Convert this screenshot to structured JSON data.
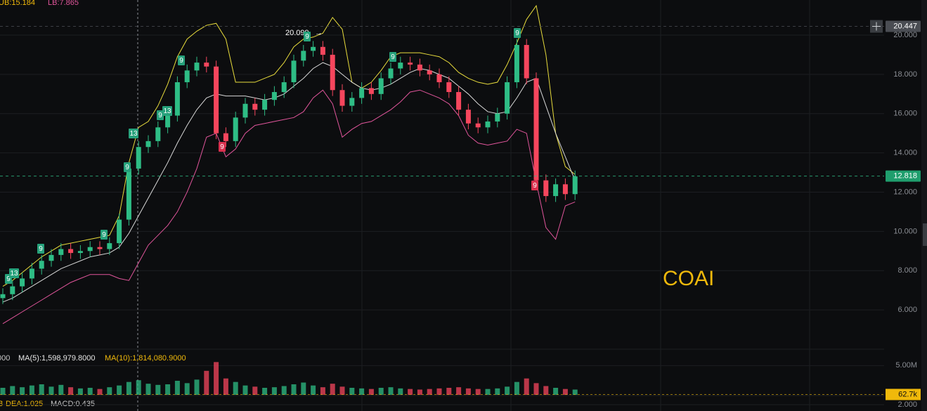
{
  "header": {
    "ub": "UB:15.184",
    "lb": "LB:7.865",
    "vol_cut": "000",
    "ma5": "MA(5):1,598,979.8000",
    "ma10": "MA(10):1,814,080.9000",
    "macd_cut": "B",
    "dea": "DEA:1.025",
    "macd": "MACD:0.435",
    "symbol": "COAI"
  },
  "chart_data": {
    "type": "candlestick",
    "up_color": "#2ebd85",
    "down_color": "#f6465d",
    "open": [
      6.6,
      6.8,
      7.2,
      7.6,
      8.1,
      8.5,
      8.8,
      9.1,
      8.9,
      9.0,
      9.2,
      9.1,
      9.4,
      10.6,
      13.2,
      14.3,
      14.6,
      15.3,
      15.9,
      17.6,
      18.2,
      18.6,
      18.4,
      15.0,
      14.6,
      15.8,
      16.5,
      16.2,
      16.7,
      17.1,
      17.6,
      18.7,
      19.2,
      19.4,
      19.0,
      17.2,
      16.4,
      16.8,
      17.3,
      17.0,
      17.8,
      18.3,
      18.6,
      18.5,
      18.2,
      18.0,
      17.6,
      17.1,
      16.2,
      15.5,
      15.3,
      15.6,
      16.0,
      17.6,
      19.5,
      17.8,
      12.6,
      11.8,
      12.4,
      11.9
    ],
    "high": [
      7.1,
      7.5,
      7.9,
      8.4,
      8.8,
      9.1,
      9.4,
      9.4,
      9.3,
      9.5,
      9.5,
      9.7,
      10.9,
      13.5,
      14.6,
      14.9,
      15.6,
      16.2,
      17.9,
      18.5,
      18.9,
      18.9,
      18.7,
      15.3,
      16.1,
      16.8,
      16.8,
      17.0,
      17.4,
      17.9,
      19.0,
      19.5,
      19.7,
      19.7,
      19.3,
      17.5,
      17.1,
      17.6,
      17.6,
      18.1,
      18.6,
      18.9,
      18.9,
      18.8,
      18.5,
      18.3,
      17.9,
      17.4,
      16.5,
      15.8,
      15.9,
      16.3,
      17.9,
      19.8,
      19.8,
      18.1,
      12.9,
      12.7,
      12.7,
      13.1
    ],
    "low": [
      6.3,
      6.5,
      6.9,
      7.3,
      7.8,
      8.2,
      8.5,
      8.6,
      8.6,
      8.7,
      8.8,
      8.8,
      9.1,
      10.3,
      12.9,
      14.0,
      14.3,
      15.0,
      15.6,
      17.3,
      17.9,
      18.1,
      14.7,
      14.3,
      14.3,
      15.5,
      15.9,
      15.9,
      16.4,
      16.8,
      17.3,
      18.4,
      18.9,
      18.7,
      16.9,
      16.1,
      16.1,
      16.5,
      16.7,
      16.7,
      17.5,
      18.0,
      18.2,
      17.9,
      17.7,
      17.3,
      16.8,
      15.9,
      15.2,
      15.0,
      15.0,
      15.3,
      15.7,
      17.3,
      17.5,
      12.3,
      11.5,
      11.5,
      11.6,
      11.6
    ],
    "close": [
      6.8,
      7.2,
      7.6,
      8.1,
      8.5,
      8.8,
      9.1,
      8.9,
      9.0,
      9.2,
      9.1,
      9.4,
      10.6,
      13.2,
      14.3,
      14.6,
      15.3,
      15.9,
      17.6,
      18.2,
      18.6,
      18.4,
      15.0,
      14.6,
      15.8,
      16.5,
      16.2,
      16.7,
      17.1,
      17.6,
      18.7,
      19.2,
      19.4,
      19.0,
      17.2,
      16.4,
      16.8,
      17.3,
      17.0,
      17.8,
      18.3,
      18.6,
      18.5,
      18.2,
      18.0,
      17.6,
      17.1,
      16.2,
      15.5,
      15.3,
      15.6,
      16.0,
      17.6,
      19.5,
      17.8,
      12.6,
      11.8,
      12.4,
      11.9,
      12.8
    ],
    "bands": [
      {
        "color": "#e8dc3c",
        "values": [
          7.2,
          7.5,
          7.9,
          8.3,
          8.7,
          9.0,
          9.3,
          9.4,
          9.5,
          9.6,
          9.7,
          9.8,
          10.8,
          13.5,
          15.3,
          15.6,
          16.4,
          17.5,
          18.9,
          19.8,
          20.2,
          20.5,
          20.6,
          19.8,
          17.6,
          17.6,
          17.6,
          17.8,
          18.0,
          18.6,
          19.4,
          19.8,
          19.9,
          20.1,
          20.9,
          20.3,
          17.6,
          17.3,
          17.6,
          18.2,
          18.9,
          19.1,
          19.1,
          19.1,
          19.0,
          18.9,
          18.6,
          18.1,
          17.8,
          17.6,
          17.5,
          17.6,
          18.5,
          19.6,
          20.8,
          21.5,
          19.0,
          15.0,
          13.3,
          12.9
        ]
      },
      {
        "color": "#d8d8d8",
        "values": [
          6.4,
          6.6,
          6.9,
          7.2,
          7.5,
          7.8,
          8.1,
          8.3,
          8.5,
          8.7,
          8.8,
          8.9,
          9.2,
          9.9,
          10.8,
          11.7,
          12.6,
          13.5,
          14.5,
          15.4,
          16.2,
          16.8,
          17.0,
          16.9,
          16.9,
          16.9,
          16.8,
          16.7,
          16.8,
          17.0,
          17.4,
          17.8,
          18.3,
          18.6,
          18.4,
          18.0,
          17.6,
          17.3,
          17.2,
          17.3,
          17.5,
          17.8,
          18.1,
          18.3,
          18.2,
          18.0,
          17.8,
          17.4,
          17.0,
          16.5,
          16.1,
          16.0,
          16.1,
          16.8,
          17.6,
          17.8,
          16.4,
          15.0,
          13.8,
          12.6
        ]
      },
      {
        "color": "#e0559b",
        "values": [
          5.3,
          5.6,
          5.9,
          6.2,
          6.5,
          6.8,
          7.1,
          7.4,
          7.6,
          7.8,
          7.8,
          7.8,
          7.6,
          7.5,
          8.4,
          9.3,
          9.8,
          10.3,
          11.0,
          12.0,
          13.2,
          14.8,
          15.0,
          13.8,
          14.2,
          15.0,
          15.4,
          15.5,
          15.6,
          15.7,
          15.8,
          16.1,
          16.8,
          17.2,
          16.5,
          14.8,
          15.2,
          15.5,
          15.6,
          15.9,
          16.2,
          16.6,
          17.1,
          17.2,
          17.0,
          16.8,
          16.5,
          15.9,
          14.9,
          14.5,
          14.4,
          14.5,
          14.6,
          15.2,
          15.0,
          12.5,
          10.2,
          9.6,
          11.3,
          11.5
        ]
      }
    ],
    "ylim": [
      4.07,
      21.79
    ],
    "yticks": [
      {
        "value": 6,
        "label": "6.000"
      },
      {
        "value": 8,
        "label": "8.000"
      },
      {
        "value": 10,
        "label": "10.000"
      },
      {
        "value": 12,
        "label": "12.000"
      },
      {
        "value": 14,
        "label": "14.000"
      },
      {
        "value": 16,
        "label": "16.000"
      },
      {
        "value": 18,
        "label": "18.000"
      },
      {
        "value": 20,
        "label": "20.000"
      }
    ],
    "grid": true,
    "crosshair_price": 20.447,
    "last_price": 12.818,
    "peak_label": 20.099,
    "markers": [
      {
        "text": "9",
        "color": "#26a17b"
      },
      {
        "text": "13",
        "color": "#26a17b"
      },
      {
        "text": "9",
        "color": "#26a17b"
      },
      {
        "text": "9",
        "color": "#26a17b"
      },
      {
        "text": "9",
        "color": "#26a17b"
      },
      {
        "text": "13",
        "color": "#26a17b"
      },
      {
        "text": "9",
        "color": "#26a17b"
      },
      {
        "text": "13",
        "color": "#26a17b"
      },
      {
        "text": "9",
        "color": "#26a17b"
      },
      {
        "text": "9",
        "color": "#d9304e"
      },
      {
        "text": "9",
        "color": "#26a17b"
      },
      {
        "text": "9",
        "color": "#26a17b"
      },
      {
        "text": "9",
        "color": "#26a17b"
      },
      {
        "text": "9",
        "color": "#d9304e"
      }
    ],
    "volume": {
      "values": [
        1200000,
        1500000,
        1300000,
        1600000,
        1800000,
        1400000,
        1700000,
        1300000,
        1100000,
        1200000,
        1000000,
        1300000,
        1600000,
        2200000,
        2500000,
        1900000,
        1700000,
        1800000,
        2400000,
        2000000,
        2600000,
        4100000,
        5600000,
        2800000,
        2200000,
        1600000,
        1400000,
        1200000,
        1300000,
        1500000,
        1800000,
        2100000,
        1600000,
        1300000,
        1900000,
        1400000,
        1200000,
        1100000,
        1000000,
        1200000,
        1300000,
        1100000,
        1000000,
        900000,
        1000000,
        1100000,
        1200000,
        1300000,
        1100000,
        1000000,
        1000000,
        1100000,
        1400000,
        2200000,
        2800000,
        2000000,
        1500000,
        1200000,
        1000000,
        900000
      ],
      "ylim": [
        0,
        6000000
      ],
      "yticks": [
        {
          "value": 5000000,
          "label": "5.00M"
        }
      ],
      "last": {
        "value": 62700,
        "label": "62.7k"
      }
    },
    "macd_yticks": [
      {
        "value": 2,
        "label": "2.000"
      }
    ]
  }
}
